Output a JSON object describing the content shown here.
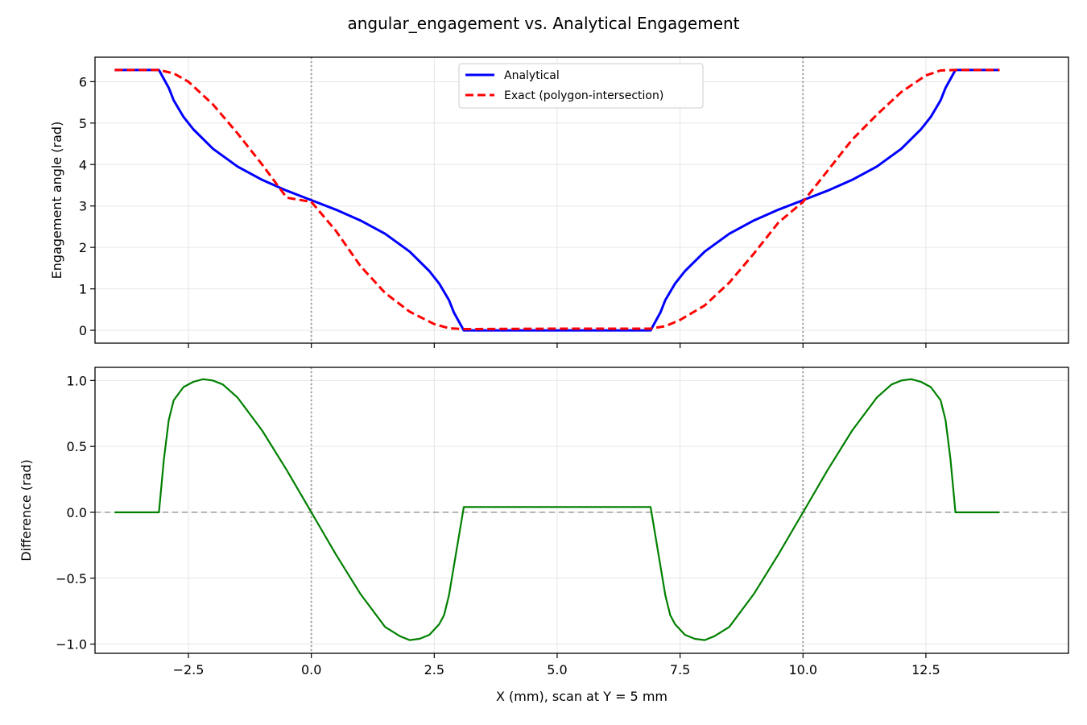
{
  "figure": {
    "title": "angular_engagement vs. Analytical Engagement"
  },
  "colors": {
    "analytical": "#0000ff",
    "exact": "#ff0000",
    "difference": "#008000",
    "grid": "#e6e6e6",
    "vline": "#a0a0a0",
    "zero_line": "#b0b0b0"
  },
  "chart_data": [
    {
      "type": "line",
      "panel": "top",
      "xlabel": "",
      "ylabel": "Engagement angle (rad)",
      "xlim": [
        -4.4,
        15.4
      ],
      "ylim": [
        -0.31,
        6.59
      ],
      "xticks": [
        -2.5,
        0.0,
        2.5,
        5.0,
        7.5,
        10.0,
        12.5
      ],
      "xtick_labels_shown": false,
      "yticks": [
        0,
        1,
        2,
        3,
        4,
        5,
        6
      ],
      "ytick_labels": [
        "0",
        "1",
        "2",
        "3",
        "4",
        "5",
        "6"
      ],
      "grid": true,
      "vlines": [
        0.0,
        10.0
      ],
      "legend_position": "upper-center",
      "series": [
        {
          "name": "Analytical",
          "style": "solid",
          "x": [
            -4.0,
            -3.1,
            -2.9,
            -2.8,
            -2.6,
            -2.4,
            -2.0,
            -1.5,
            -1.0,
            -0.5,
            0.0,
            0.5,
            1.0,
            1.5,
            2.0,
            2.4,
            2.6,
            2.8,
            2.9,
            3.1,
            5.0,
            6.9,
            7.1,
            7.2,
            7.4,
            7.6,
            8.0,
            8.5,
            9.0,
            9.5,
            10.0,
            10.5,
            11.0,
            11.5,
            12.0,
            12.4,
            12.6,
            12.8,
            12.9,
            13.1,
            14.0
          ],
          "y": [
            6.28,
            6.28,
            5.85,
            5.55,
            5.15,
            4.85,
            4.38,
            3.95,
            3.63,
            3.37,
            3.14,
            2.91,
            2.65,
            2.33,
            1.9,
            1.43,
            1.13,
            0.73,
            0.43,
            0.0,
            0.0,
            0.0,
            0.43,
            0.73,
            1.13,
            1.43,
            1.9,
            2.33,
            2.65,
            2.91,
            3.14,
            3.37,
            3.63,
            3.95,
            4.38,
            4.85,
            5.15,
            5.55,
            5.85,
            6.28,
            6.28
          ]
        },
        {
          "name": "Exact (polygon-intersection)",
          "style": "dashed",
          "x": [
            -4.0,
            -3.1,
            -2.8,
            -2.5,
            -2.0,
            -1.5,
            -1.0,
            -0.5,
            0.0,
            0.5,
            1.0,
            1.5,
            2.0,
            2.5,
            2.8,
            3.1,
            5.0,
            6.9,
            7.2,
            7.5,
            8.0,
            8.5,
            9.0,
            9.5,
            10.0,
            10.5,
            11.0,
            11.5,
            12.0,
            12.5,
            12.8,
            13.1,
            14.0
          ],
          "y": [
            6.28,
            6.28,
            6.2,
            6.0,
            5.45,
            4.75,
            4.0,
            3.2,
            3.1,
            2.4,
            1.55,
            0.9,
            0.45,
            0.15,
            0.05,
            0.03,
            0.04,
            0.04,
            0.1,
            0.25,
            0.6,
            1.15,
            1.85,
            2.6,
            3.1,
            3.85,
            4.6,
            5.2,
            5.75,
            6.15,
            6.27,
            6.28,
            6.28
          ]
        }
      ]
    },
    {
      "type": "line",
      "panel": "bottom",
      "xlabel": "X (mm), scan at Y = 5 mm",
      "ylabel": "Difference (rad)",
      "xlim": [
        -4.4,
        15.4
      ],
      "ylim": [
        -1.07,
        1.1
      ],
      "xticks": [
        -2.5,
        0.0,
        2.5,
        5.0,
        7.5,
        10.0,
        12.5
      ],
      "xtick_labels": [
        "−2.5",
        "0.0",
        "2.5",
        "5.0",
        "7.5",
        "10.0",
        "12.5"
      ],
      "yticks": [
        -1.0,
        -0.5,
        0.0,
        0.5,
        1.0
      ],
      "ytick_labels": [
        "−1.0",
        "−0.5",
        "0.0",
        "0.5",
        "1.0"
      ],
      "grid": true,
      "vlines": [
        0.0,
        10.0
      ],
      "hline": 0.0,
      "series": [
        {
          "style": "solid",
          "x": [
            -4.0,
            -3.1,
            -3.0,
            -2.9,
            -2.8,
            -2.6,
            -2.4,
            -2.2,
            -2.0,
            -1.8,
            -1.5,
            -1.0,
            -0.5,
            0.0,
            0.5,
            1.0,
            1.5,
            1.8,
            2.0,
            2.2,
            2.4,
            2.6,
            2.7,
            2.8,
            3.1,
            5.0,
            6.9,
            7.2,
            7.3,
            7.4,
            7.6,
            7.8,
            8.0,
            8.2,
            8.5,
            9.0,
            9.5,
            10.0,
            10.5,
            11.0,
            11.5,
            11.8,
            12.0,
            12.2,
            12.4,
            12.6,
            12.8,
            12.9,
            13.0,
            13.1,
            14.0
          ],
          "y": [
            0.0,
            0.0,
            0.4,
            0.7,
            0.85,
            0.95,
            0.99,
            1.01,
            1.0,
            0.97,
            0.87,
            0.62,
            0.32,
            0.0,
            -0.32,
            -0.62,
            -0.87,
            -0.94,
            -0.97,
            -0.96,
            -0.93,
            -0.85,
            -0.78,
            -0.63,
            0.04,
            0.04,
            0.04,
            -0.63,
            -0.78,
            -0.85,
            -0.93,
            -0.96,
            -0.97,
            -0.94,
            -0.87,
            -0.62,
            -0.32,
            0.0,
            0.32,
            0.62,
            0.87,
            0.97,
            1.0,
            1.01,
            0.99,
            0.95,
            0.85,
            0.7,
            0.4,
            0.0,
            0.0
          ]
        }
      ]
    }
  ]
}
